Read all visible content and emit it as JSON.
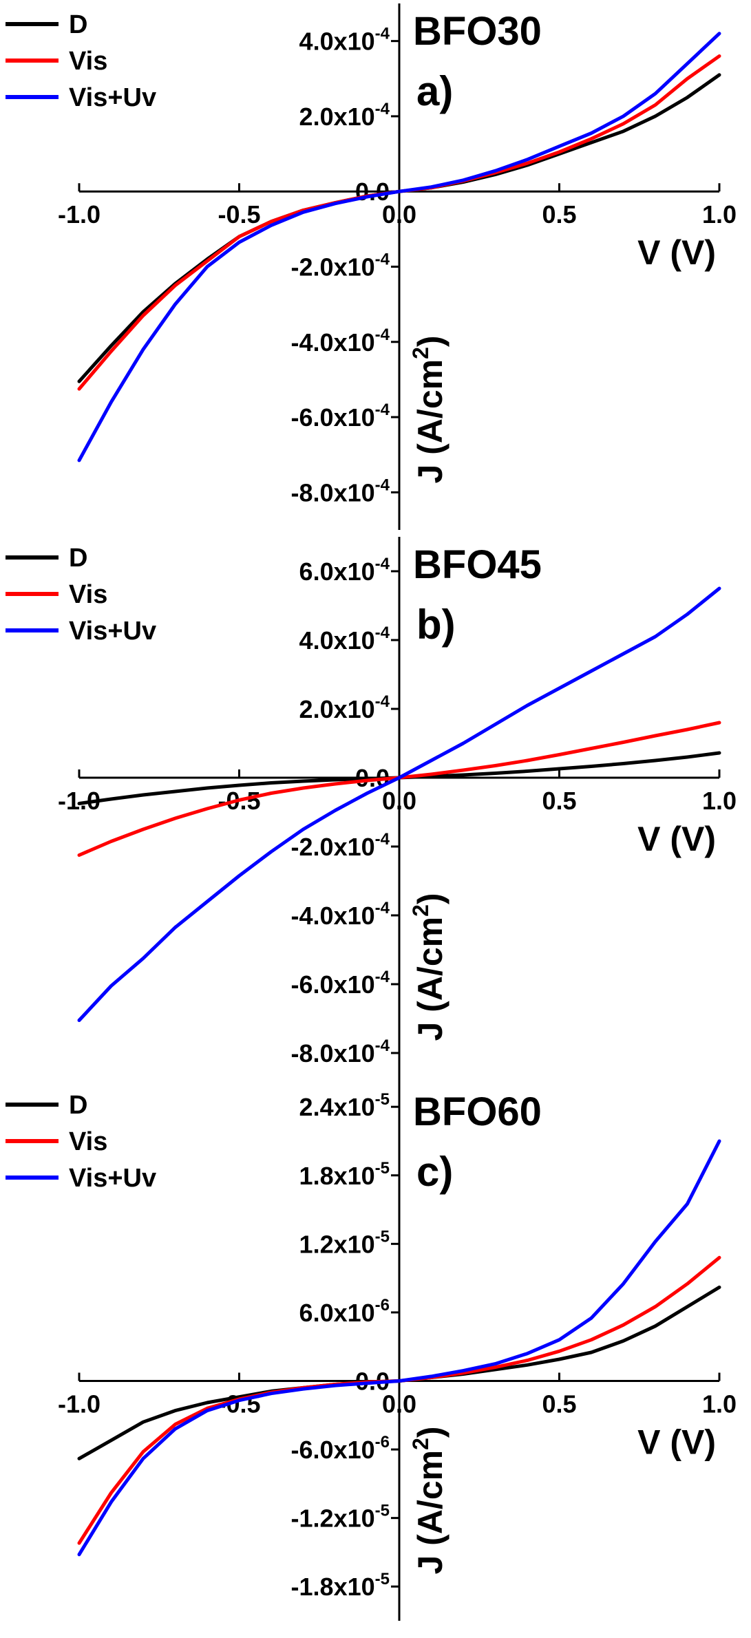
{
  "chart_data": [
    {
      "type": "line",
      "panel_label": "a)",
      "title": "BFO30",
      "xlabel": "V (V)",
      "ylabel": "J (A/cm",
      "ylabel_sup": "2",
      "ylabel_close": ")",
      "xlim": [
        -1.0,
        1.0
      ],
      "ylim": [
        -0.0009,
        0.0005
      ],
      "xticks": [
        -1.0,
        -0.5,
        0.0,
        0.5,
        1.0
      ],
      "xtick_labels": [
        "-1.0",
        "-0.5",
        "0.0",
        "0.5",
        "1.0"
      ],
      "yticks": [
        0.0004,
        0.0002,
        0.0,
        -0.0002,
        -0.0004,
        -0.0006,
        -0.0008
      ],
      "ytick_labels": [
        {
          "base": "4.0x10",
          "exp": "-4"
        },
        {
          "base": "2.0x10",
          "exp": "-4"
        },
        {
          "base": "0.0",
          "exp": ""
        },
        {
          "base": "-2.0x10",
          "exp": "-4"
        },
        {
          "base": "-4.0x10",
          "exp": "-4"
        },
        {
          "base": "-6.0x10",
          "exp": "-4"
        },
        {
          "base": "-8.0x10",
          "exp": "-4"
        }
      ],
      "x": [
        -1.0,
        -0.9,
        -0.8,
        -0.7,
        -0.6,
        -0.5,
        -0.4,
        -0.3,
        -0.2,
        -0.1,
        0.0,
        0.1,
        0.2,
        0.3,
        0.4,
        0.5,
        0.6,
        0.7,
        0.8,
        0.9,
        1.0
      ],
      "series": [
        {
          "name": "D",
          "color": "#000000",
          "values": [
            -0.000505,
            -0.00041,
            -0.00032,
            -0.000245,
            -0.00018,
            -0.00012,
            -8e-05,
            -5e-05,
            -3e-05,
            -1.2e-05,
            0.0,
            1e-05,
            2.5e-05,
            4.5e-05,
            7e-05,
            0.0001,
            0.00013,
            0.00016,
            0.0002,
            0.00025,
            0.00031
          ]
        },
        {
          "name": "Vis",
          "color": "#ff0000",
          "values": [
            -0.000525,
            -0.000425,
            -0.00033,
            -0.00025,
            -0.000185,
            -0.00012,
            -8e-05,
            -5e-05,
            -3e-05,
            -1.2e-05,
            0.0,
            1e-05,
            2.8e-05,
            5e-05,
            7.5e-05,
            0.000105,
            0.00014,
            0.00018,
            0.00023,
            0.0003,
            0.00036
          ]
        },
        {
          "name": "Vis+Uv",
          "color": "#0000ff",
          "values": [
            -0.000715,
            -0.00056,
            -0.00042,
            -0.0003,
            -0.0002,
            -0.000135,
            -9e-05,
            -5.5e-05,
            -3.2e-05,
            -1.4e-05,
            0.0,
            1.2e-05,
            3e-05,
            5.5e-05,
            8.5e-05,
            0.00012,
            0.000155,
            0.0002,
            0.00026,
            0.00034,
            0.00042
          ]
        }
      ]
    },
    {
      "type": "line",
      "panel_label": "b)",
      "title": "BFO45",
      "xlabel": "V (V)",
      "ylabel": "J (A/cm",
      "ylabel_sup": "2",
      "ylabel_close": ")",
      "xlim": [
        -1.0,
        1.0
      ],
      "ylim": [
        -0.0009,
        0.0007
      ],
      "xticks": [
        -1.0,
        -0.5,
        0.0,
        0.5,
        1.0
      ],
      "xtick_labels": [
        "-1.0",
        "-0.5",
        "0.0",
        "0.5",
        "1.0"
      ],
      "yticks": [
        0.0006,
        0.0004,
        0.0002,
        0.0,
        -0.0002,
        -0.0004,
        -0.0006,
        -0.0008
      ],
      "ytick_labels": [
        {
          "base": "6.0x10",
          "exp": "-4"
        },
        {
          "base": "4.0x10",
          "exp": "-4"
        },
        {
          "base": "2.0x10",
          "exp": "-4"
        },
        {
          "base": "0.0",
          "exp": ""
        },
        {
          "base": "-2.0x10",
          "exp": "-4"
        },
        {
          "base": "-4.0x10",
          "exp": "-4"
        },
        {
          "base": "-6.0x10",
          "exp": "-4"
        },
        {
          "base": "-8.0x10",
          "exp": "-4"
        }
      ],
      "x": [
        -1.0,
        -0.9,
        -0.8,
        -0.7,
        -0.6,
        -0.5,
        -0.4,
        -0.3,
        -0.2,
        -0.1,
        0.0,
        0.1,
        0.2,
        0.3,
        0.4,
        0.5,
        0.6,
        0.7,
        0.8,
        0.9,
        1.0
      ],
      "series": [
        {
          "name": "D",
          "color": "#000000",
          "values": [
            -7.5e-05,
            -6.2e-05,
            -5e-05,
            -4e-05,
            -3e-05,
            -2.2e-05,
            -1.5e-05,
            -1e-05,
            -6e-06,
            -3e-06,
            0.0,
            4e-06,
            8e-06,
            1.3e-05,
            1.9e-05,
            2.6e-05,
            3.3e-05,
            4.1e-05,
            5e-05,
            6e-05,
            7.2e-05
          ]
        },
        {
          "name": "Vis",
          "color": "#ff0000",
          "values": [
            -0.000225,
            -0.000185,
            -0.00015,
            -0.000118,
            -9e-05,
            -6.5e-05,
            -4.5e-05,
            -3e-05,
            -1.8e-05,
            -8e-06,
            0.0,
            1e-05,
            2.2e-05,
            3.5e-05,
            5e-05,
            6.7e-05,
            8.5e-05,
            0.000103,
            0.000122,
            0.00014,
            0.00016
          ]
        },
        {
          "name": "Vis+Uv",
          "color": "#0000ff",
          "values": [
            -0.000705,
            -0.000605,
            -0.000525,
            -0.000435,
            -0.00036,
            -0.000285,
            -0.000215,
            -0.00015,
            -9.5e-05,
            -4.5e-05,
            0.0,
            5e-05,
            0.0001,
            0.000155,
            0.00021,
            0.00026,
            0.00031,
            0.00036,
            0.00041,
            0.000475,
            0.00055
          ]
        }
      ]
    },
    {
      "type": "line",
      "panel_label": "c)",
      "title": "BFO60",
      "xlabel": "V (V)",
      "ylabel": "J (A/cm",
      "ylabel_sup": "2",
      "ylabel_close": ")",
      "xlim": [
        -1.0,
        1.0
      ],
      "ylim": [
        -2.1e-05,
        2.6e-05
      ],
      "xticks": [
        -1.0,
        -0.5,
        0.0,
        0.5,
        1.0
      ],
      "xtick_labels": [
        "-1.0",
        "-0.5",
        "0.0",
        "0.5",
        "1.0"
      ],
      "yticks": [
        2.4e-05,
        1.8e-05,
        1.2e-05,
        6e-06,
        0.0,
        -6e-06,
        -1.2e-05,
        -1.8e-05
      ],
      "ytick_labels": [
        {
          "base": "2.4x10",
          "exp": "-5"
        },
        {
          "base": "1.8x10",
          "exp": "-5"
        },
        {
          "base": "1.2x10",
          "exp": "-5"
        },
        {
          "base": "6.0x10",
          "exp": "-6"
        },
        {
          "base": "0.0",
          "exp": ""
        },
        {
          "base": "-6.0x10",
          "exp": "-6"
        },
        {
          "base": "-1.2x10",
          "exp": "-5"
        },
        {
          "base": "-1.8x10",
          "exp": "-5"
        }
      ],
      "x": [
        -1.0,
        -0.9,
        -0.8,
        -0.7,
        -0.6,
        -0.5,
        -0.4,
        -0.3,
        -0.2,
        -0.1,
        0.0,
        0.1,
        0.2,
        0.3,
        0.4,
        0.5,
        0.6,
        0.7,
        0.8,
        0.9,
        1.0
      ],
      "series": [
        {
          "name": "D",
          "color": "#000000",
          "values": [
            -6.8e-06,
            -5.2e-06,
            -3.6e-06,
            -2.6e-06,
            -1.9e-06,
            -1.4e-06,
            -9e-07,
            -6e-07,
            -3e-07,
            -1e-07,
            0.0,
            3e-07,
            6e-07,
            1e-06,
            1.4e-06,
            1.9e-06,
            2.5e-06,
            3.5e-06,
            4.8e-06,
            6.5e-06,
            8.2e-06
          ]
        },
        {
          "name": "Vis",
          "color": "#ff0000",
          "values": [
            -1.42e-05,
            -9.8e-06,
            -6.2e-06,
            -3.8e-06,
            -2.4e-06,
            -1.6e-06,
            -1e-06,
            -6e-07,
            -3e-07,
            -1e-07,
            0.0,
            3e-07,
            7e-07,
            1.2e-06,
            1.8e-06,
            2.6e-06,
            3.6e-06,
            4.9e-06,
            6.5e-06,
            8.5e-06,
            1.08e-05
          ]
        },
        {
          "name": "Vis+Uv",
          "color": "#0000ff",
          "values": [
            -1.52e-05,
            -1.06e-05,
            -6.8e-06,
            -4.2e-06,
            -2.6e-06,
            -1.7e-06,
            -1.1e-06,
            -7e-07,
            -4e-07,
            -2e-07,
            0.0,
            4e-07,
            9e-07,
            1.5e-06,
            2.4e-06,
            3.6e-06,
            5.5e-06,
            8.5e-06,
            1.22e-05,
            1.55e-05,
            2.1e-05
          ]
        }
      ]
    }
  ]
}
